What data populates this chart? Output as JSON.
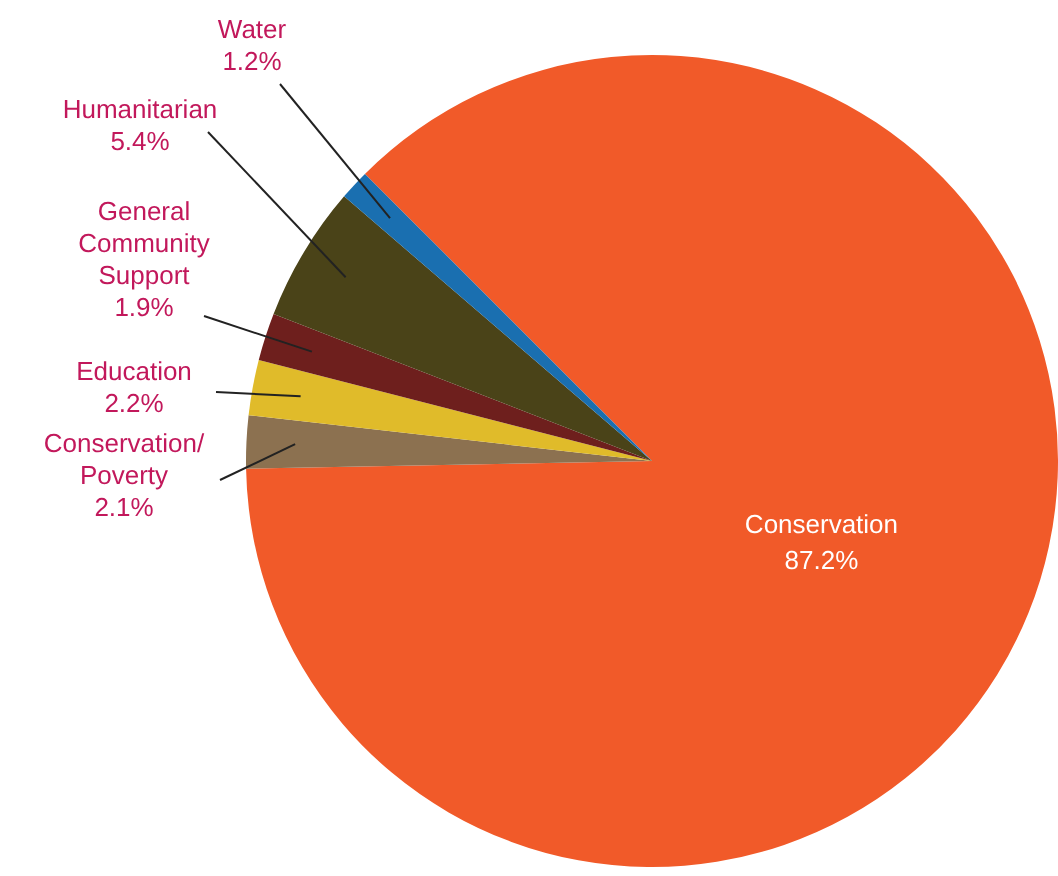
{
  "chart_data": {
    "type": "pie",
    "categories": [
      "Conservation",
      "Conservation/ Poverty",
      "Education",
      "General Community Support",
      "Humanitarian",
      "Water"
    ],
    "values": [
      87.2,
      2.1,
      2.2,
      1.9,
      5.4,
      1.2
    ],
    "colors": [
      "#f15a29",
      "#8c7150",
      "#e0bb2a",
      "#6e1f1d",
      "#4a4318",
      "#1a6fb0"
    ],
    "value_labels": [
      "87.2%",
      "2.1%",
      "2.2%",
      "1.9%",
      "5.4%",
      "1.2%"
    ],
    "legend": false
  }
}
